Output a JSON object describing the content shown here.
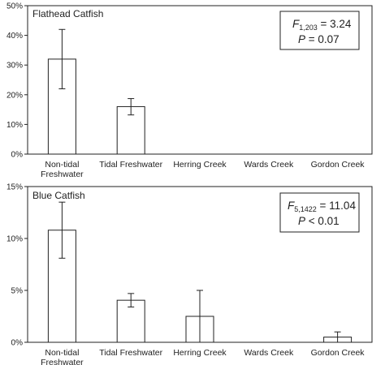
{
  "chart_data": [
    {
      "type": "bar",
      "title": "Flathead Catfish",
      "categories": [
        [
          "Non-tidal",
          "Freshwater"
        ],
        [
          "Tidal Freshwater"
        ],
        [
          "Herring Creek"
        ],
        [
          "Wards Creek"
        ],
        [
          "Gordon Creek"
        ]
      ],
      "values": [
        32,
        16,
        0,
        0,
        0
      ],
      "error": [
        [
          22,
          42
        ],
        [
          13.2,
          18.7
        ],
        null,
        null,
        null
      ],
      "ylim": [
        0,
        50
      ],
      "yticks": [
        0,
        10,
        20,
        30,
        40,
        50
      ],
      "ytick_labels": [
        "0%",
        "10%",
        "20%",
        "30%",
        "40%",
        "50%"
      ],
      "stat": {
        "f_symbol": "F",
        "f_df": "1,203",
        "f_value": " = 3.24",
        "p_symbol": "P",
        "p_value": " = 0.07"
      }
    },
    {
      "type": "bar",
      "title": "Blue Catfish",
      "categories": [
        [
          "Non-tidal",
          "Freshwater"
        ],
        [
          "Tidal Freshwater"
        ],
        [
          "Herring Creek"
        ],
        [
          "Wards Creek"
        ],
        [
          "Gordon Creek"
        ]
      ],
      "values": [
        10.8,
        4.05,
        2.5,
        0,
        0.5
      ],
      "error": [
        [
          8.1,
          13.5
        ],
        [
          3.4,
          4.7
        ],
        [
          0,
          5
        ],
        null,
        [
          0,
          1
        ]
      ],
      "ylim": [
        0,
        15
      ],
      "yticks": [
        0,
        5,
        10,
        15
      ],
      "ytick_labels": [
        "0%",
        "5%",
        "10%",
        "15%"
      ],
      "stat": {
        "f_symbol": "F",
        "f_df": "5,1422",
        "f_value": " = 11.04",
        "p_symbol": "P",
        "p_value": " < 0.01"
      }
    }
  ]
}
